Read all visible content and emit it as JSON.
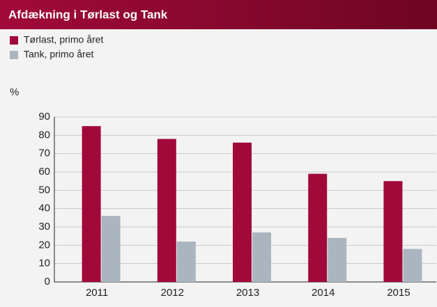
{
  "chart_data": {
    "type": "bar",
    "title": "Afdækning i Tørlast og Tank",
    "y_label": "%",
    "categories": [
      "2011",
      "2012",
      "2013",
      "2014",
      "2015"
    ],
    "series": [
      {
        "name": "Tørlast, primo året",
        "color": "#a1093a",
        "values": [
          85,
          78,
          76,
          59,
          55
        ]
      },
      {
        "name": "Tank, primo året",
        "color": "#aab5c0",
        "values": [
          36,
          22,
          27,
          24,
          18
        ]
      }
    ],
    "ylim": [
      0,
      90
    ],
    "yticks": [
      0,
      10,
      20,
      30,
      40,
      50,
      60,
      70,
      80,
      90
    ],
    "grid": true
  }
}
